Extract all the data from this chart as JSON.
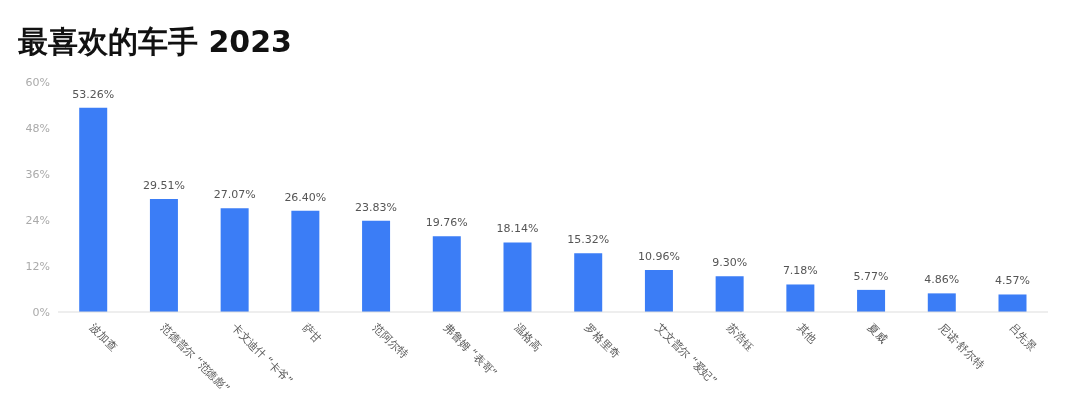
{
  "chart_data": {
    "type": "bar",
    "title": "最喜欢的车手 2023",
    "categories": [
      "波加查",
      "范德普尔 “范德彪”",
      "卡文迪什 “卡爷”",
      "萨甘",
      "范阿尔特",
      "弗鲁姆 “表哥”",
      "温格高",
      "罗格里奇",
      "艾文普尔 “爱妃”",
      "苏浩钰",
      "其他",
      "夏威",
      "尼诺·舒尔特",
      "吕先景"
    ],
    "values": [
      53.26,
      29.51,
      27.07,
      26.4,
      23.83,
      19.76,
      18.14,
      15.32,
      10.96,
      9.3,
      7.18,
      5.77,
      4.86,
      4.57
    ],
    "value_labels": [
      "53.26%",
      "29.51%",
      "27.07%",
      "26.40%",
      "23.83%",
      "19.76%",
      "18.14%",
      "15.32%",
      "10.96%",
      "9.30%",
      "7.18%",
      "5.77%",
      "4.86%",
      "4.57%"
    ],
    "color": "#3b7df6",
    "ylim": [
      0,
      60
    ],
    "yticks": [
      {
        "value": 0,
        "label": "0%"
      },
      {
        "value": 12,
        "label": "12%"
      },
      {
        "value": 24,
        "label": "24%"
      },
      {
        "value": 36,
        "label": "36%"
      },
      {
        "value": 48,
        "label": "48%"
      },
      {
        "value": 60,
        "label": "60%"
      }
    ],
    "grid": false
  }
}
